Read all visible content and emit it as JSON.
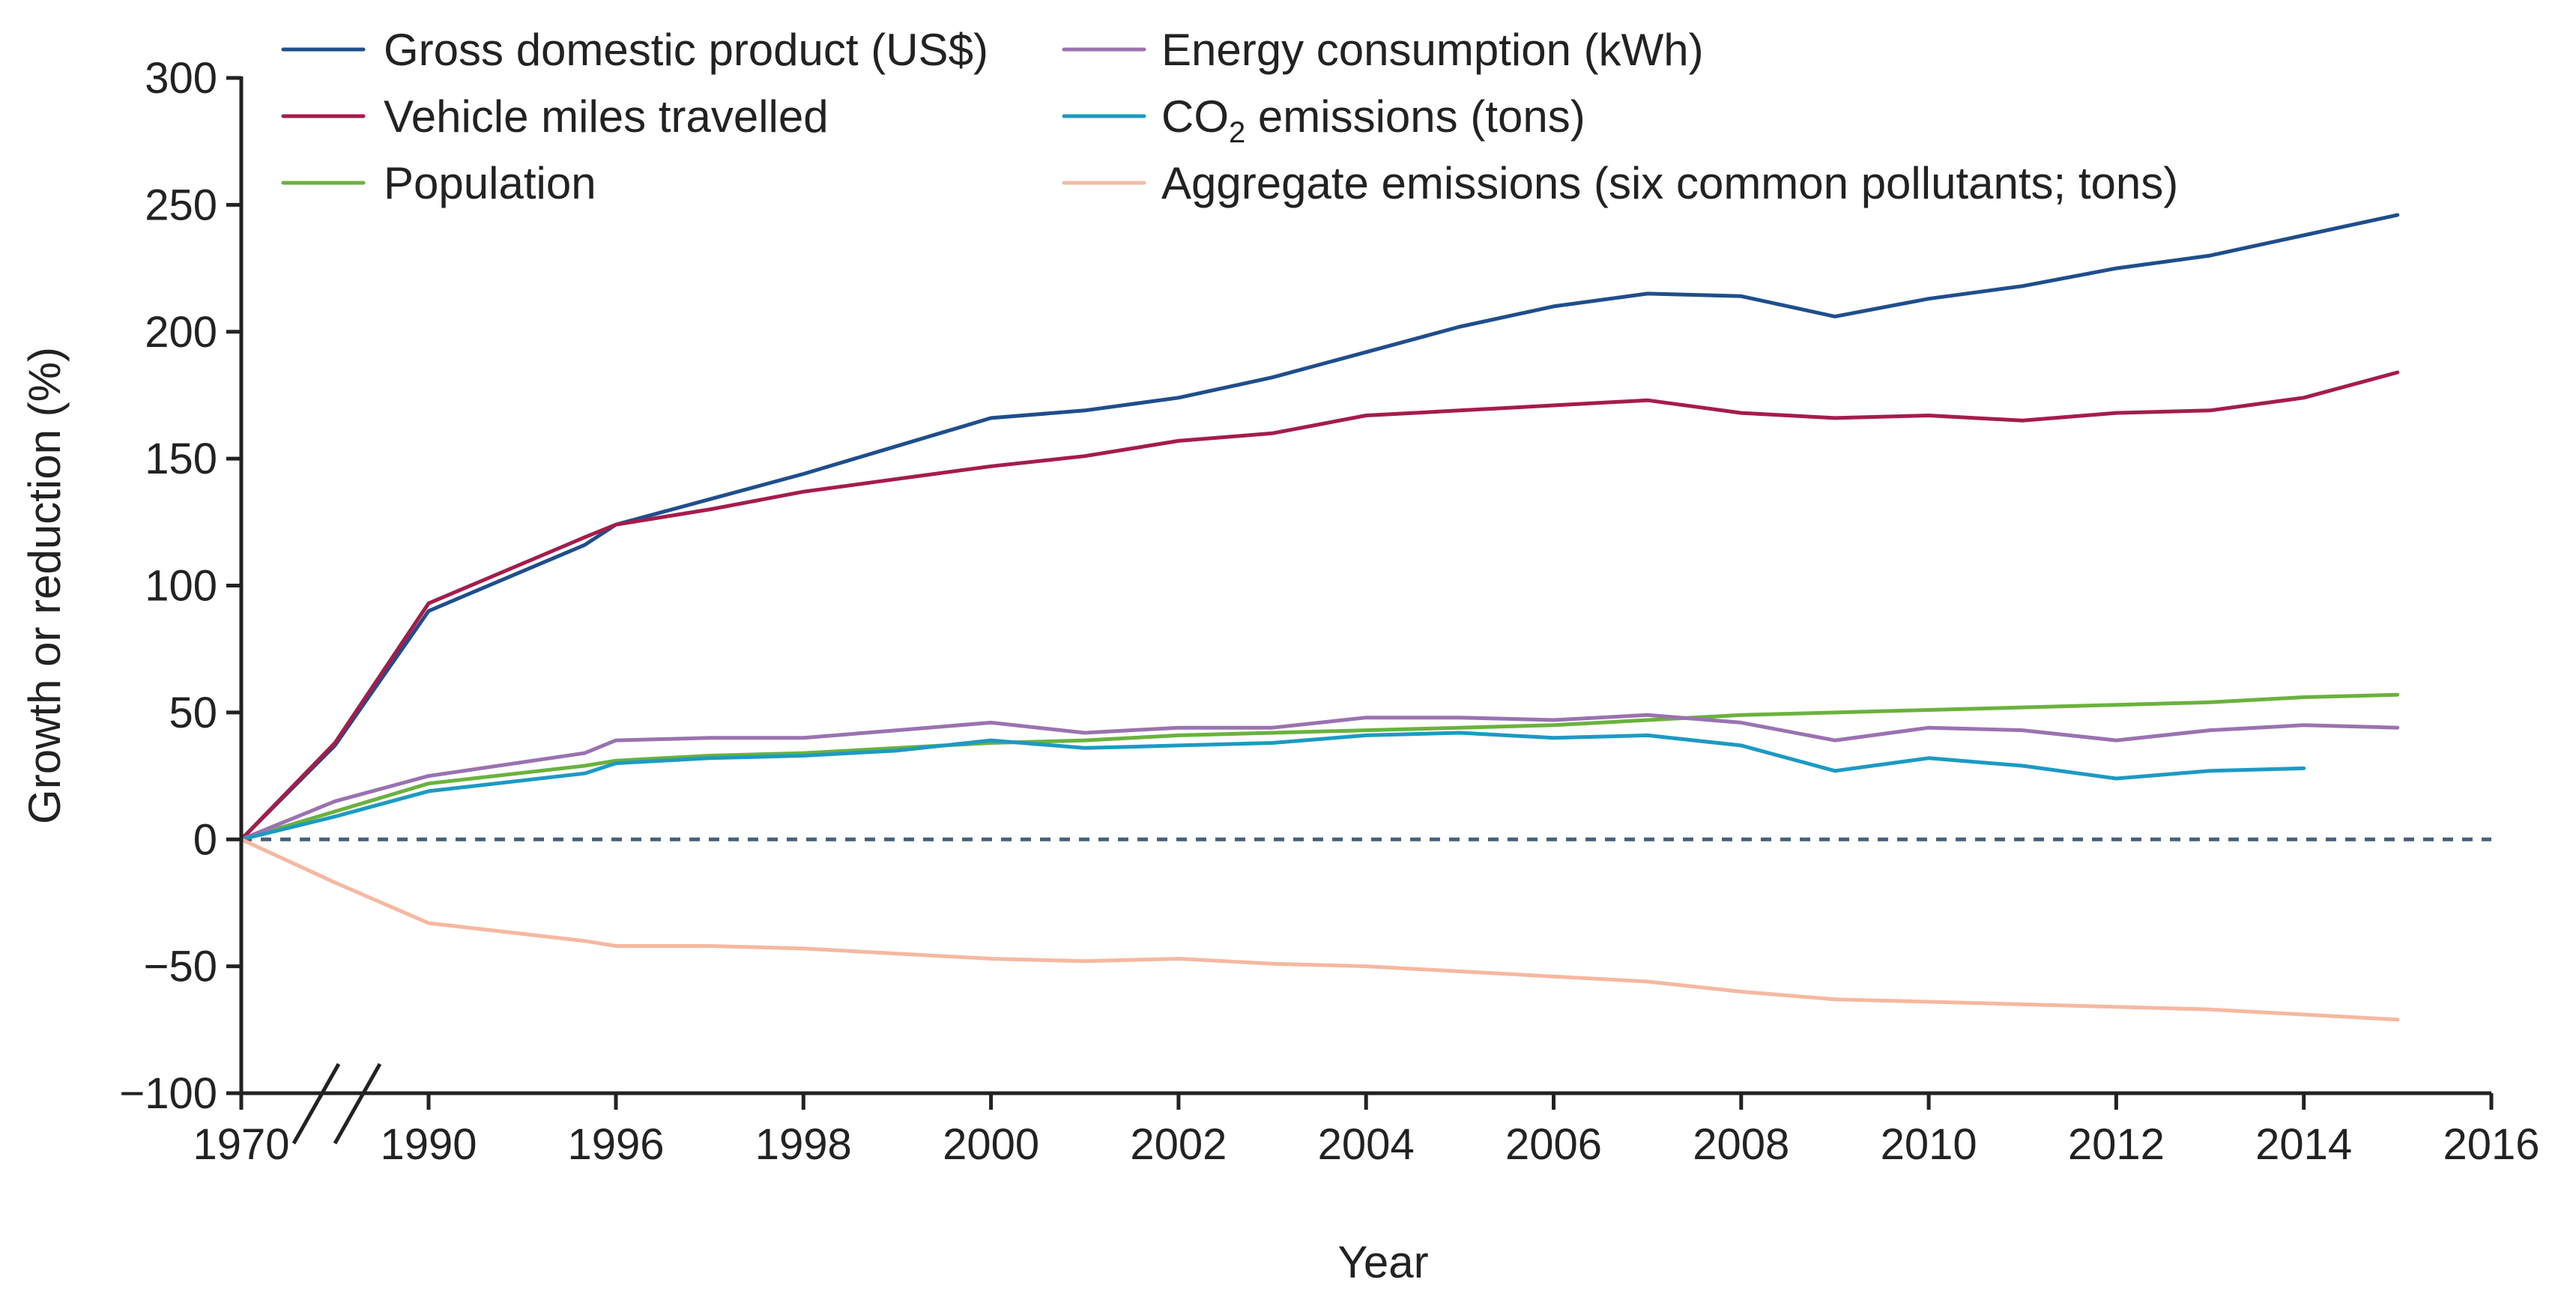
{
  "chart_data": {
    "type": "line",
    "title": "",
    "xlabel": "Year",
    "ylabel": "Growth or reduction (%)",
    "ylim": [
      -100,
      300
    ],
    "yticks": [
      300,
      250,
      200,
      150,
      100,
      50,
      0,
      -50,
      -100
    ],
    "ytick_labels": [
      "300",
      "250",
      "200",
      "150",
      "100",
      "50",
      "0",
      "−50",
      "−100"
    ],
    "x_tick_years": [
      1970,
      1990,
      1996,
      1998,
      2000,
      2002,
      2004,
      2006,
      2008,
      2010,
      2012,
      2014,
      2016
    ],
    "axis_break_between": [
      1970,
      1990
    ],
    "zero_line": "dashed",
    "grid": false,
    "legend_position": "top-left",
    "series": [
      {
        "name": "Gross domestic product (US$)",
        "color": "#1f4e8c",
        "points": [
          [
            1970,
            0
          ],
          [
            1980,
            37
          ],
          [
            1990,
            90
          ],
          [
            1995,
            116
          ],
          [
            1996,
            124
          ],
          [
            1997,
            134
          ],
          [
            1998,
            144
          ],
          [
            1999,
            155
          ],
          [
            2000,
            166
          ],
          [
            2001,
            169
          ],
          [
            2002,
            174
          ],
          [
            2003,
            182
          ],
          [
            2004,
            192
          ],
          [
            2005,
            202
          ],
          [
            2006,
            210
          ],
          [
            2007,
            215
          ],
          [
            2008,
            214
          ],
          [
            2009,
            206
          ],
          [
            2010,
            213
          ],
          [
            2011,
            218
          ],
          [
            2012,
            225
          ],
          [
            2013,
            230
          ],
          [
            2014,
            238
          ],
          [
            2015,
            246
          ]
        ]
      },
      {
        "name": "Vehicle miles travelled",
        "color": "#a51c4a",
        "points": [
          [
            1970,
            0
          ],
          [
            1980,
            38
          ],
          [
            1990,
            93
          ],
          [
            1995,
            119
          ],
          [
            1996,
            124
          ],
          [
            1997,
            130
          ],
          [
            1998,
            137
          ],
          [
            1999,
            142
          ],
          [
            2000,
            147
          ],
          [
            2001,
            151
          ],
          [
            2002,
            157
          ],
          [
            2003,
            160
          ],
          [
            2004,
            167
          ],
          [
            2005,
            169
          ],
          [
            2006,
            171
          ],
          [
            2007,
            173
          ],
          [
            2008,
            168
          ],
          [
            2009,
            166
          ],
          [
            2010,
            167
          ],
          [
            2011,
            165
          ],
          [
            2012,
            168
          ],
          [
            2013,
            169
          ],
          [
            2014,
            174
          ],
          [
            2015,
            184
          ]
        ]
      },
      {
        "name": "Population",
        "color": "#6ab23d",
        "points": [
          [
            1970,
            0
          ],
          [
            1980,
            11
          ],
          [
            1990,
            22
          ],
          [
            1995,
            29
          ],
          [
            1996,
            31
          ],
          [
            1997,
            33
          ],
          [
            1998,
            34
          ],
          [
            1999,
            36
          ],
          [
            2000,
            38
          ],
          [
            2001,
            39
          ],
          [
            2002,
            41
          ],
          [
            2003,
            42
          ],
          [
            2004,
            43
          ],
          [
            2005,
            44
          ],
          [
            2006,
            45
          ],
          [
            2007,
            47
          ],
          [
            2008,
            49
          ],
          [
            2009,
            50
          ],
          [
            2010,
            51
          ],
          [
            2011,
            52
          ],
          [
            2012,
            53
          ],
          [
            2013,
            54
          ],
          [
            2014,
            56
          ],
          [
            2015,
            57
          ]
        ]
      },
      {
        "name": "Energy consumption (kWh)",
        "color": "#9a72b0",
        "points": [
          [
            1970,
            0
          ],
          [
            1980,
            15
          ],
          [
            1990,
            25
          ],
          [
            1995,
            34
          ],
          [
            1996,
            39
          ],
          [
            1997,
            40
          ],
          [
            1998,
            40
          ],
          [
            1999,
            43
          ],
          [
            2000,
            46
          ],
          [
            2001,
            42
          ],
          [
            2002,
            44
          ],
          [
            2003,
            44
          ],
          [
            2004,
            48
          ],
          [
            2005,
            48
          ],
          [
            2006,
            47
          ],
          [
            2007,
            49
          ],
          [
            2008,
            46
          ],
          [
            2009,
            39
          ],
          [
            2010,
            44
          ],
          [
            2011,
            43
          ],
          [
            2012,
            39
          ],
          [
            2013,
            43
          ],
          [
            2014,
            45
          ],
          [
            2015,
            44
          ]
        ]
      },
      {
        "name": "CO2 emissions (tons)",
        "color": "#1c9ac3",
        "points": [
          [
            1970,
            0
          ],
          [
            1980,
            9
          ],
          [
            1990,
            19
          ],
          [
            1995,
            26
          ],
          [
            1996,
            30
          ],
          [
            1997,
            32
          ],
          [
            1998,
            33
          ],
          [
            1999,
            35
          ],
          [
            2000,
            39
          ],
          [
            2001,
            36
          ],
          [
            2002,
            37
          ],
          [
            2003,
            38
          ],
          [
            2004,
            41
          ],
          [
            2005,
            42
          ],
          [
            2006,
            40
          ],
          [
            2007,
            41
          ],
          [
            2008,
            37
          ],
          [
            2009,
            27
          ],
          [
            2010,
            32
          ],
          [
            2011,
            29
          ],
          [
            2012,
            24
          ],
          [
            2013,
            27
          ],
          [
            2014,
            28
          ]
        ]
      },
      {
        "name": "Aggregate emissions (six common pollutants; tons)",
        "color": "#f6b8a0",
        "points": [
          [
            1970,
            0
          ],
          [
            1980,
            -17
          ],
          [
            1990,
            -33
          ],
          [
            1995,
            -40
          ],
          [
            1996,
            -42
          ],
          [
            1997,
            -42
          ],
          [
            1998,
            -43
          ],
          [
            1999,
            -45
          ],
          [
            2000,
            -47
          ],
          [
            2001,
            -48
          ],
          [
            2002,
            -47
          ],
          [
            2003,
            -49
          ],
          [
            2004,
            -50
          ],
          [
            2005,
            -52
          ],
          [
            2006,
            -54
          ],
          [
            2007,
            -56
          ],
          [
            2008,
            -60
          ],
          [
            2009,
            -63
          ],
          [
            2010,
            -64
          ],
          [
            2011,
            -65
          ],
          [
            2012,
            -66
          ],
          [
            2013,
            -67
          ],
          [
            2014,
            -69
          ],
          [
            2015,
            -71
          ]
        ]
      }
    ],
    "legend": [
      {
        "label": "Gross domestic product (US$)",
        "color": "#1f4e8c"
      },
      {
        "label": "Vehicle miles travelled",
        "color": "#a51c4a"
      },
      {
        "label": "Population",
        "color": "#6ab23d"
      },
      {
        "label": "Energy consumption (kWh)",
        "color": "#9a72b0"
      },
      {
        "label_main": "CO",
        "label_sub": "2",
        "label_rest": " emissions (tons)",
        "color": "#1c9ac3"
      },
      {
        "label": "Aggregate emissions (six common pollutants; tons)",
        "color": "#f6b8a0"
      }
    ]
  }
}
